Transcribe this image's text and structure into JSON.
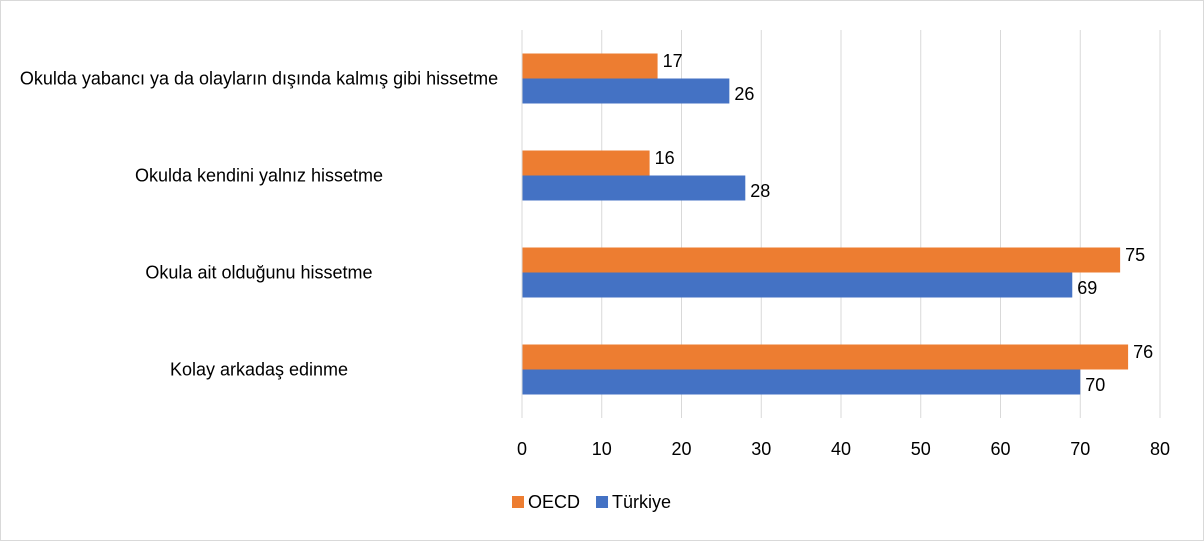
{
  "chart_data": {
    "type": "hbar",
    "categories": [
      "Okulda yabancı ya da olayların dışında kalmış gibi hissetme",
      "Okulda kendini yalnız hissetme",
      "Okula ait olduğunu hissetme",
      "Kolay arkadaş edinme"
    ],
    "series": [
      {
        "name": "OECD",
        "color": "#ed7d31",
        "values": [
          17,
          16,
          75,
          76
        ]
      },
      {
        "name": "Türkiye",
        "color": "#4472c4",
        "values": [
          26,
          28,
          69,
          70
        ]
      }
    ],
    "xlim": [
      0,
      80
    ],
    "xticks": [
      0,
      10,
      20,
      30,
      40,
      50,
      60,
      70,
      80
    ],
    "grid": true,
    "legend": "bottom"
  }
}
